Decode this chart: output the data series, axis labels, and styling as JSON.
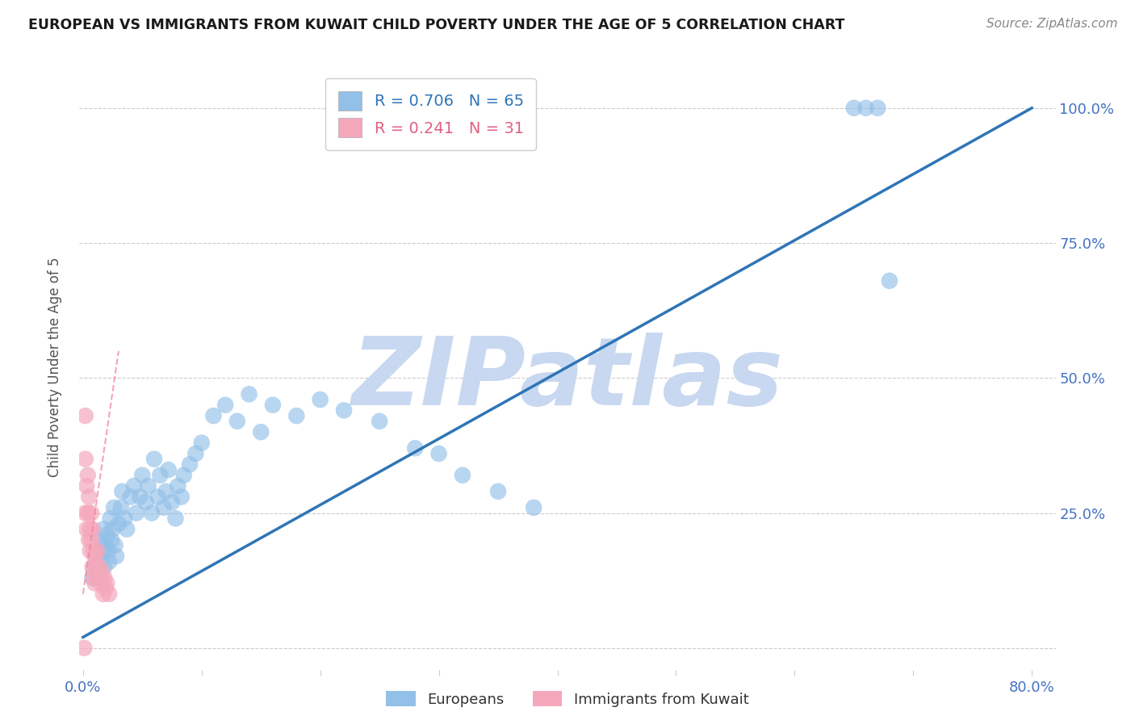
{
  "title": "EUROPEAN VS IMMIGRANTS FROM KUWAIT CHILD POVERTY UNDER THE AGE OF 5 CORRELATION CHART",
  "source": "Source: ZipAtlas.com",
  "ylabel": "Child Poverty Under the Age of 5",
  "xlim": [
    -0.003,
    0.82
  ],
  "ylim": [
    -0.04,
    1.08
  ],
  "xtick_positions": [
    0.0,
    0.1,
    0.2,
    0.3,
    0.4,
    0.5,
    0.6,
    0.7,
    0.8
  ],
  "xticklabels": [
    "0.0%",
    "",
    "",
    "",
    "",
    "",
    "",
    "",
    "80.0%"
  ],
  "ytick_positions": [
    0.0,
    0.25,
    0.5,
    0.75,
    1.0
  ],
  "yticklabels_right": [
    "",
    "25.0%",
    "50.0%",
    "75.0%",
    "100.0%"
  ],
  "blue_R": 0.706,
  "blue_N": 65,
  "pink_R": 0.241,
  "pink_N": 31,
  "blue_fill": "#92C0E8",
  "pink_fill": "#F5A8BC",
  "blue_line": "#2E75B6",
  "pink_line": "#F08098",
  "tick_label_color": "#4472C4",
  "grid_color": "#CCCCCC",
  "watermark_color": "#C8D8F0",
  "blue_scatter_x": [
    0.008,
    0.01,
    0.012,
    0.013,
    0.015,
    0.015,
    0.016,
    0.017,
    0.018,
    0.019,
    0.02,
    0.021,
    0.022,
    0.023,
    0.024,
    0.025,
    0.026,
    0.027,
    0.028,
    0.03,
    0.032,
    0.033,
    0.035,
    0.037,
    0.04,
    0.043,
    0.045,
    0.048,
    0.05,
    0.053,
    0.055,
    0.058,
    0.06,
    0.063,
    0.065,
    0.068,
    0.07,
    0.072,
    0.075,
    0.078,
    0.08,
    0.083,
    0.085,
    0.09,
    0.095,
    0.1,
    0.11,
    0.12,
    0.13,
    0.14,
    0.15,
    0.16,
    0.18,
    0.2,
    0.22,
    0.25,
    0.28,
    0.3,
    0.32,
    0.35,
    0.38,
    0.65,
    0.66,
    0.67,
    0.68
  ],
  "blue_scatter_y": [
    0.13,
    0.15,
    0.14,
    0.17,
    0.16,
    0.2,
    0.18,
    0.22,
    0.15,
    0.19,
    0.21,
    0.18,
    0.16,
    0.24,
    0.2,
    0.22,
    0.26,
    0.19,
    0.17,
    0.23,
    0.26,
    0.29,
    0.24,
    0.22,
    0.28,
    0.3,
    0.25,
    0.28,
    0.32,
    0.27,
    0.3,
    0.25,
    0.35,
    0.28,
    0.32,
    0.26,
    0.29,
    0.33,
    0.27,
    0.24,
    0.3,
    0.28,
    0.32,
    0.34,
    0.36,
    0.38,
    0.43,
    0.45,
    0.42,
    0.47,
    0.4,
    0.45,
    0.43,
    0.46,
    0.44,
    0.42,
    0.37,
    0.36,
    0.32,
    0.29,
    0.26,
    1.0,
    1.0,
    1.0,
    0.68
  ],
  "pink_scatter_x": [
    0.001,
    0.002,
    0.002,
    0.003,
    0.003,
    0.004,
    0.004,
    0.005,
    0.005,
    0.006,
    0.006,
    0.007,
    0.007,
    0.008,
    0.008,
    0.009,
    0.009,
    0.01,
    0.01,
    0.011,
    0.012,
    0.013,
    0.014,
    0.015,
    0.016,
    0.017,
    0.018,
    0.019,
    0.02,
    0.022,
    0.002
  ],
  "pink_scatter_y": [
    0.0,
    0.43,
    0.35,
    0.3,
    0.22,
    0.32,
    0.25,
    0.2,
    0.28,
    0.22,
    0.18,
    0.25,
    0.2,
    0.15,
    0.22,
    0.18,
    0.13,
    0.17,
    0.12,
    0.15,
    0.18,
    0.13,
    0.15,
    0.12,
    0.14,
    0.1,
    0.13,
    0.11,
    0.12,
    0.1,
    0.25
  ],
  "blue_regline": [
    0.0,
    0.02,
    0.8,
    1.0
  ],
  "pink_regline_x": [
    0.0,
    0.03
  ],
  "pink_regline_y": [
    0.1,
    0.55
  ],
  "legend_blue": "Europeans",
  "legend_pink": "Immigrants from Kuwait"
}
